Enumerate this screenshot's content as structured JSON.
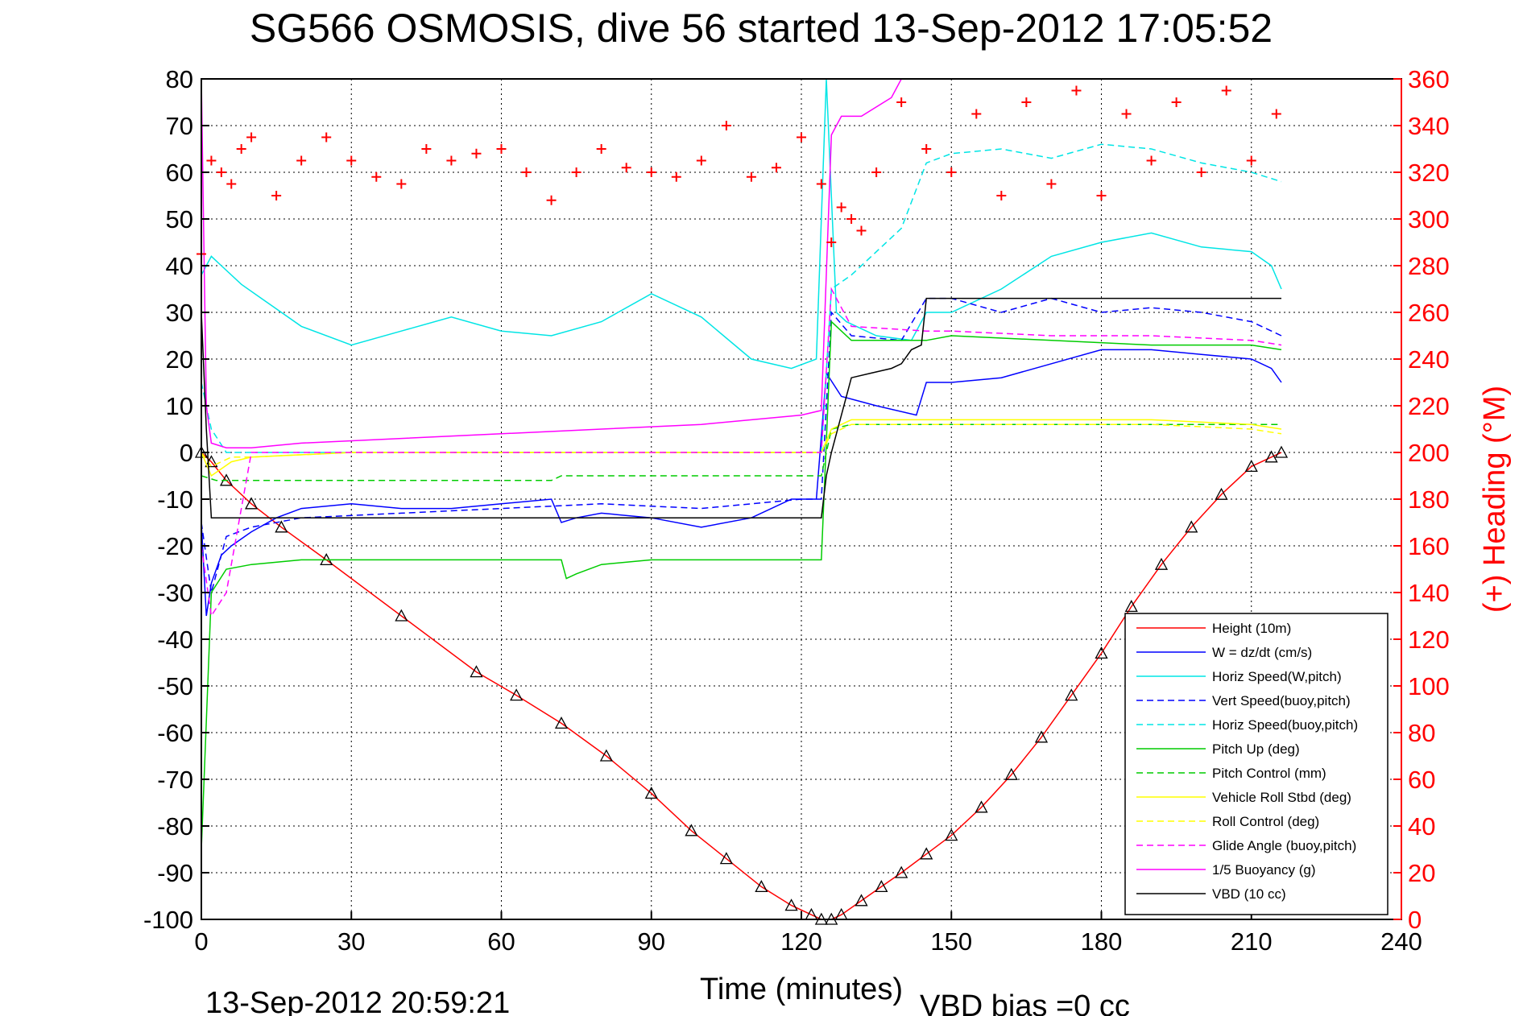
{
  "chart_data": {
    "type": "line",
    "title": "SG566 OSMOSIS, dive 56 started 13-Sep-2012 17:05:52",
    "xlabel": "Time (minutes)",
    "ylabel_right": "(+) Heading (°M)",
    "footer_left": "13-Sep-2012 20:59:21",
    "footer_right": "VBD bias =0 cc",
    "xlim": [
      0,
      240
    ],
    "ylim": [
      -100,
      80
    ],
    "y2lim": [
      0,
      360
    ],
    "xticks": [
      "0",
      "30",
      "60",
      "90",
      "120",
      "150",
      "180",
      "210",
      "240"
    ],
    "yticks": [
      "80",
      "70",
      "60",
      "50",
      "40",
      "30",
      "20",
      "10",
      "0",
      "-10",
      "-20",
      "-30",
      "-40",
      "-50",
      "-60",
      "-70",
      "-80",
      "-90",
      "-100"
    ],
    "y2ticks": [
      "360",
      "340",
      "320",
      "300",
      "280",
      "260",
      "240",
      "220",
      "200",
      "180",
      "160",
      "140",
      "120",
      "100",
      "80",
      "60",
      "40",
      "20",
      "0"
    ],
    "grid": true,
    "legend_position": "bottom-right",
    "colors": {
      "height": "#ff0000",
      "w": "#0000ff",
      "horiz_w": "#00e5e5",
      "vert_buoy": "#0000ff",
      "horiz_buoy": "#00e5e5",
      "pitch": "#00cc00",
      "pitch_ctrl": "#00cc00",
      "roll": "#ffff00",
      "roll_ctrl": "#ffff00",
      "glide": "#ff00ff",
      "buoyancy": "#ff00ff",
      "vbd": "#000000",
      "heading": "#ff0000"
    },
    "series": [
      {
        "name": "Height (10m)",
        "key": "height",
        "axis": "left",
        "style": "solid",
        "x": [
          0,
          2,
          5,
          10,
          16,
          25,
          40,
          55,
          63,
          72,
          81,
          90,
          98,
          105,
          112,
          118,
          122,
          124,
          126,
          128,
          132,
          136,
          140,
          145,
          150,
          156,
          162,
          168,
          174,
          180,
          186,
          192,
          198,
          204,
          210,
          214,
          216
        ],
        "y": [
          0,
          -2,
          -6,
          -11,
          -16,
          -23,
          -35,
          -47,
          -52,
          -58,
          -65,
          -73,
          -81,
          -87,
          -93,
          -97,
          -99,
          -100,
          -100,
          -99,
          -96,
          -93,
          -90,
          -86,
          -82,
          -76,
          -69,
          -61,
          -52,
          -43,
          -33,
          -24,
          -16,
          -9,
          -3,
          -1,
          0
        ]
      },
      {
        "name": "W = dz/dt (cm/s)",
        "key": "w",
        "axis": "left",
        "style": "solid",
        "x": [
          0,
          1,
          2,
          4,
          6,
          10,
          15,
          20,
          30,
          40,
          50,
          60,
          70,
          72,
          75,
          80,
          90,
          100,
          110,
          118,
          123,
          125,
          128,
          135,
          143,
          145,
          150,
          160,
          170,
          180,
          190,
          200,
          210,
          214,
          216
        ],
        "y": [
          -15,
          -35,
          -28,
          -22,
          -20,
          -17,
          -14,
          -12,
          -11,
          -12,
          -12,
          -11,
          -10,
          -15,
          -14,
          -13,
          -14,
          -16,
          -14,
          -10,
          -10,
          17,
          12,
          10,
          8,
          15,
          15,
          16,
          19,
          22,
          22,
          21,
          20,
          18,
          15
        ]
      },
      {
        "name": "Horiz Speed(W,pitch)",
        "key": "horiz_w",
        "axis": "left",
        "style": "solid",
        "x": [
          0,
          2,
          4,
          8,
          12,
          20,
          30,
          40,
          50,
          60,
          70,
          80,
          90,
          100,
          110,
          118,
          123,
          125,
          127,
          129,
          135,
          142,
          145,
          150,
          160,
          170,
          180,
          190,
          200,
          210,
          214,
          216
        ],
        "y": [
          38,
          42,
          40,
          36,
          33,
          27,
          23,
          26,
          29,
          26,
          25,
          28,
          34,
          29,
          20,
          18,
          20,
          80,
          30,
          28,
          25,
          24,
          30,
          30,
          35,
          42,
          45,
          47,
          44,
          43,
          40,
          35
        ]
      },
      {
        "name": "Vert Speed(buoy,pitch)",
        "key": "vert_buoy",
        "axis": "left",
        "style": "dashed",
        "x": [
          0,
          2,
          5,
          10,
          20,
          40,
          60,
          80,
          100,
          120,
          124,
          126,
          130,
          140,
          145,
          150,
          160,
          170,
          180,
          190,
          200,
          210,
          216
        ],
        "y": [
          -15,
          -30,
          -18,
          -16,
          -14,
          -13,
          -12,
          -11,
          -12,
          -10,
          -10,
          30,
          25,
          24,
          33,
          33,
          30,
          33,
          30,
          31,
          30,
          28,
          25
        ]
      },
      {
        "name": "Horiz Speed(buoy,pitch)",
        "key": "horiz_buoy",
        "axis": "left",
        "style": "dashed",
        "x": [
          0,
          2,
          5,
          10,
          20,
          40,
          60,
          80,
          100,
          120,
          124,
          126,
          130,
          140,
          145,
          150,
          160,
          170,
          180,
          190,
          200,
          210,
          216
        ],
        "y": [
          15,
          5,
          0,
          0,
          0,
          0,
          0,
          0,
          0,
          0,
          0,
          35,
          38,
          48,
          62,
          64,
          65,
          63,
          66,
          65,
          62,
          60,
          58
        ]
      },
      {
        "name": "Pitch Up (deg)",
        "key": "pitch",
        "axis": "left",
        "style": "solid",
        "x": [
          0,
          2,
          5,
          10,
          20,
          40,
          60,
          72,
          73,
          75,
          80,
          90,
          100,
          110,
          118,
          124,
          126,
          130,
          145,
          150,
          170,
          190,
          210,
          216
        ],
        "y": [
          -85,
          -30,
          -25,
          -24,
          -23,
          -23,
          -23,
          -23,
          -27,
          -26,
          -24,
          -23,
          -23,
          -23,
          -23,
          -23,
          28,
          24,
          24,
          25,
          24,
          23,
          23,
          22
        ]
      },
      {
        "name": "Pitch Control (mm)",
        "key": "pitch_ctrl",
        "axis": "left",
        "style": "dashed",
        "x": [
          0,
          3,
          6,
          10,
          30,
          60,
          70,
          72,
          80,
          100,
          120,
          124,
          126,
          130,
          145,
          160,
          180,
          200,
          216
        ],
        "y": [
          -5,
          -6,
          -6,
          -6,
          -6,
          -6,
          -6,
          -5,
          -5,
          -5,
          -5,
          -5,
          5,
          6,
          6,
          6,
          6,
          6,
          6
        ]
      },
      {
        "name": "Vehicle Roll Stbd (deg)",
        "key": "roll",
        "axis": "left",
        "style": "solid",
        "x": [
          0,
          2,
          6,
          10,
          30,
          60,
          90,
          120,
          124,
          126,
          130,
          145,
          170,
          190,
          210,
          216
        ],
        "y": [
          0,
          -5,
          -2,
          -1,
          0,
          0,
          0,
          0,
          0,
          5,
          7,
          7,
          7,
          7,
          6,
          5
        ]
      },
      {
        "name": "Roll Control (deg)",
        "key": "roll_ctrl",
        "axis": "left",
        "style": "dashed",
        "x": [
          0,
          2,
          6,
          10,
          30,
          60,
          90,
          120,
          124,
          126,
          130,
          145,
          170,
          190,
          210,
          216
        ],
        "y": [
          0,
          -3,
          -1,
          -1,
          0,
          0,
          0,
          0,
          0,
          4,
          6,
          6,
          6,
          6,
          5,
          4
        ]
      },
      {
        "name": "Glide Angle (buoy,pitch)",
        "key": "glide",
        "axis": "left",
        "style": "dashed",
        "x": [
          0,
          2,
          5,
          10,
          30,
          60,
          90,
          120,
          124,
          126,
          130,
          145,
          150,
          170,
          190,
          210,
          216
        ],
        "y": [
          -20,
          -35,
          -30,
          0,
          0,
          0,
          0,
          0,
          0,
          35,
          27,
          26,
          26,
          25,
          25,
          24,
          23
        ]
      },
      {
        "name": "1/5 Buoyancy (g)",
        "key": "buoyancy",
        "axis": "left",
        "style": "solid",
        "x": [
          0,
          1,
          2,
          5,
          10,
          20,
          40,
          60,
          80,
          100,
          120,
          124,
          126,
          128,
          132,
          138,
          140,
          142,
          143,
          145
        ],
        "y": [
          80,
          10,
          2,
          1,
          1,
          2,
          3,
          4,
          5,
          6,
          8,
          9,
          68,
          72,
          72,
          76,
          80,
          80,
          80,
          80
        ]
      },
      {
        "name": "VBD (10 cc)",
        "key": "vbd",
        "axis": "left",
        "style": "solid",
        "x": [
          0,
          1,
          2,
          3,
          20,
          60,
          100,
          124,
          125,
          126,
          130,
          134,
          138,
          140,
          142,
          144,
          145,
          160,
          180,
          200,
          214,
          216
        ],
        "y": [
          30,
          5,
          -14,
          -14,
          -14,
          -14,
          -14,
          -14,
          -5,
          0,
          16,
          17,
          18,
          19,
          22,
          23,
          33,
          33,
          33,
          33,
          33,
          33
        ]
      },
      {
        "name": "(+) Heading",
        "key": "heading",
        "axis": "right",
        "style": "markers",
        "x": [
          0,
          2,
          4,
          6,
          8,
          10,
          15,
          20,
          25,
          30,
          35,
          40,
          45,
          50,
          55,
          60,
          65,
          70,
          75,
          80,
          85,
          90,
          95,
          100,
          105,
          110,
          115,
          120,
          124,
          126,
          128,
          130,
          132,
          135,
          140,
          145,
          150,
          155,
          160,
          165,
          170,
          175,
          180,
          185,
          190,
          195,
          200,
          205,
          210,
          215
        ],
        "y": [
          285,
          325,
          320,
          315,
          330,
          335,
          310,
          325,
          335,
          325,
          318,
          315,
          330,
          325,
          328,
          330,
          320,
          308,
          320,
          330,
          322,
          320,
          318,
          325,
          340,
          318,
          322,
          335,
          315,
          290,
          305,
          300,
          295,
          320,
          350,
          330,
          320,
          345,
          310,
          350,
          315,
          355,
          310,
          345,
          325,
          350,
          320,
          355,
          325,
          345
        ]
      }
    ]
  }
}
